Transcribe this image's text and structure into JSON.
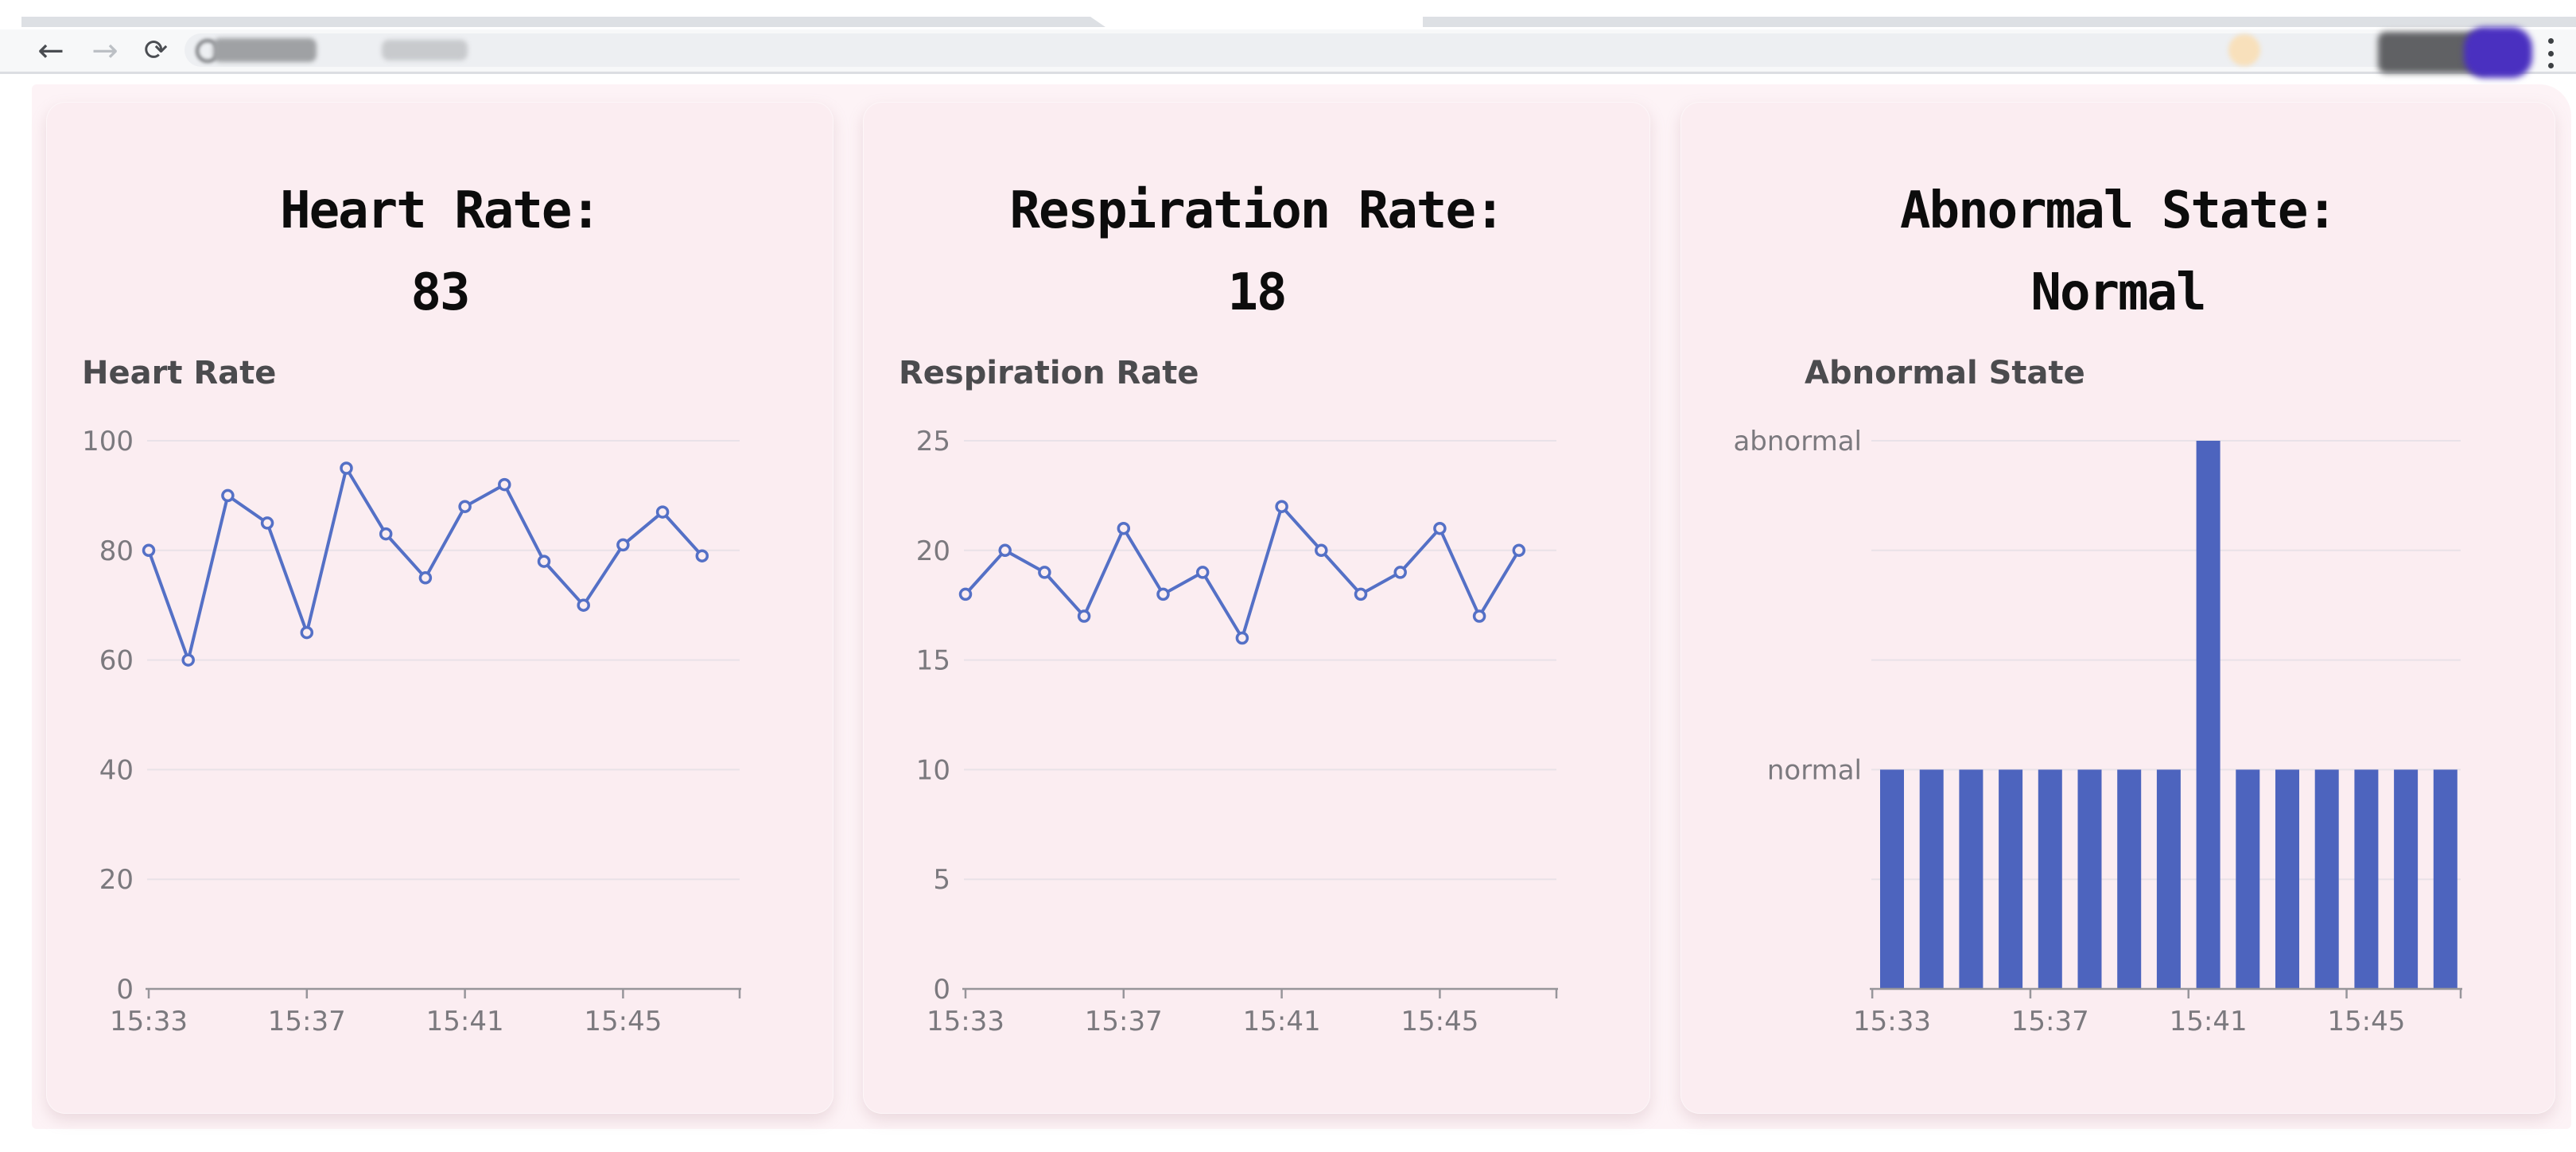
{
  "browser": {
    "toolbar": {
      "back_label": "←",
      "forward_label": "→",
      "reload_label": "⟳",
      "menu_label": "⋮"
    }
  },
  "colors": {
    "accent_line": "#5470c6",
    "accent_bar": "#4d64be",
    "card_bg": "#fbedf1",
    "page_bg": "#fdf3f6",
    "axis_label": "#7b797e",
    "grid_line": "#e9e2e8",
    "axis_line": "#97959a",
    "chart_title": "#4b4b4e"
  },
  "cards": [
    {
      "headline_line1": "Heart Rate:",
      "headline_line2": "83",
      "chart_index": 0
    },
    {
      "headline_line1": "Respiration Rate:",
      "headline_line2": "18",
      "chart_index": 1
    },
    {
      "headline_line1": "Abnormal State:",
      "headline_line2": "Normal",
      "chart_index": 2
    }
  ],
  "chart_data": [
    {
      "type": "line",
      "title": "Heart Rate",
      "x": [
        "15:33",
        "15:34",
        "15:35",
        "15:36",
        "15:37",
        "15:38",
        "15:39",
        "15:40",
        "15:41",
        "15:42",
        "15:43",
        "15:44",
        "15:45",
        "15:46",
        "15:47"
      ],
      "values": [
        80,
        60,
        90,
        85,
        65,
        95,
        83,
        75,
        88,
        92,
        78,
        70,
        81,
        87,
        79
      ],
      "ylim": [
        0,
        100
      ],
      "yticks": [
        100,
        80,
        60,
        40,
        20,
        0
      ],
      "x_tick_labels": [
        "15:33",
        "15:37",
        "15:41",
        "15:45"
      ],
      "grid": true,
      "legend": "none"
    },
    {
      "type": "line",
      "title": "Respiration Rate",
      "x": [
        "15:33",
        "15:34",
        "15:35",
        "15:36",
        "15:37",
        "15:38",
        "15:39",
        "15:40",
        "15:41",
        "15:42",
        "15:43",
        "15:44",
        "15:45",
        "15:46",
        "15:47"
      ],
      "values": [
        18,
        20,
        19,
        17,
        21,
        18,
        19,
        16,
        22,
        20,
        18,
        19,
        21,
        17,
        20
      ],
      "ylim": [
        0,
        25
      ],
      "yticks": [
        25,
        20,
        15,
        10,
        5,
        0
      ],
      "x_tick_labels": [
        "15:33",
        "15:37",
        "15:41",
        "15:45"
      ],
      "grid": true,
      "legend": "none"
    },
    {
      "type": "bar",
      "title": "Abnormal State",
      "x": [
        "15:33",
        "15:34",
        "15:35",
        "15:36",
        "15:37",
        "15:38",
        "15:39",
        "15:40",
        "15:41",
        "15:42",
        "15:43",
        "15:44",
        "15:45",
        "15:46",
        "15:47"
      ],
      "values": [
        "normal",
        "normal",
        "normal",
        "normal",
        "normal",
        "normal",
        "normal",
        "normal",
        "abnormal",
        "normal",
        "normal",
        "normal",
        "normal",
        "normal",
        "normal"
      ],
      "y_categories": [
        "normal",
        "abnormal"
      ],
      "y_label_rows": {
        "abnormal": 0,
        "normal": 3
      },
      "x_tick_labels": [
        "15:33",
        "15:37",
        "15:41",
        "15:45"
      ],
      "grid": true,
      "legend": "none"
    }
  ]
}
